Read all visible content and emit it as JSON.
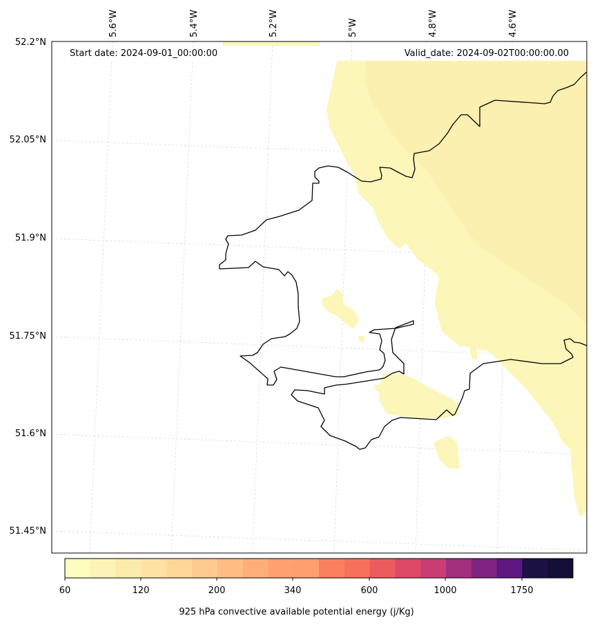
{
  "header": {
    "start_date": "Start date: 2024-09-01_00:00:00",
    "valid_date": "Valid_date: 2024-09-02T00:00:00.00"
  },
  "longitude_labels": [
    "5.6°W",
    "5.4°W",
    "5.2°W",
    "5°W",
    "4.8°W",
    "4.6°W"
  ],
  "latitude_labels": [
    "52.2°N",
    "52.05°N",
    "51.9°N",
    "51.75°N",
    "51.6°N",
    "51.45°N"
  ],
  "colorbar": {
    "title": "925 hPa convective available potential energy (j/Kg)",
    "tick_labels": [
      "60",
      "120",
      "200",
      "340",
      "600",
      "1000",
      "1750"
    ],
    "colors": [
      "#fcfdbf",
      "#fcf4b6",
      "#fdebac",
      "#fde2a3",
      "#fed799",
      "#feca8d",
      "#febd82",
      "#feaf77",
      "#fea16e",
      "#fe9f6d",
      "#fa815f",
      "#f7705c",
      "#ec5c5e",
      "#de4968",
      "#c83e73",
      "#a1307e",
      "#7f2582",
      "#5e177f",
      "#1c1044",
      "#140e36"
    ]
  },
  "legend_field_colors": [
    "#fcf6b8",
    "#fbf0b0"
  ],
  "colors": {
    "coastline": "#000000",
    "gridline": "#d9d9d9"
  }
}
